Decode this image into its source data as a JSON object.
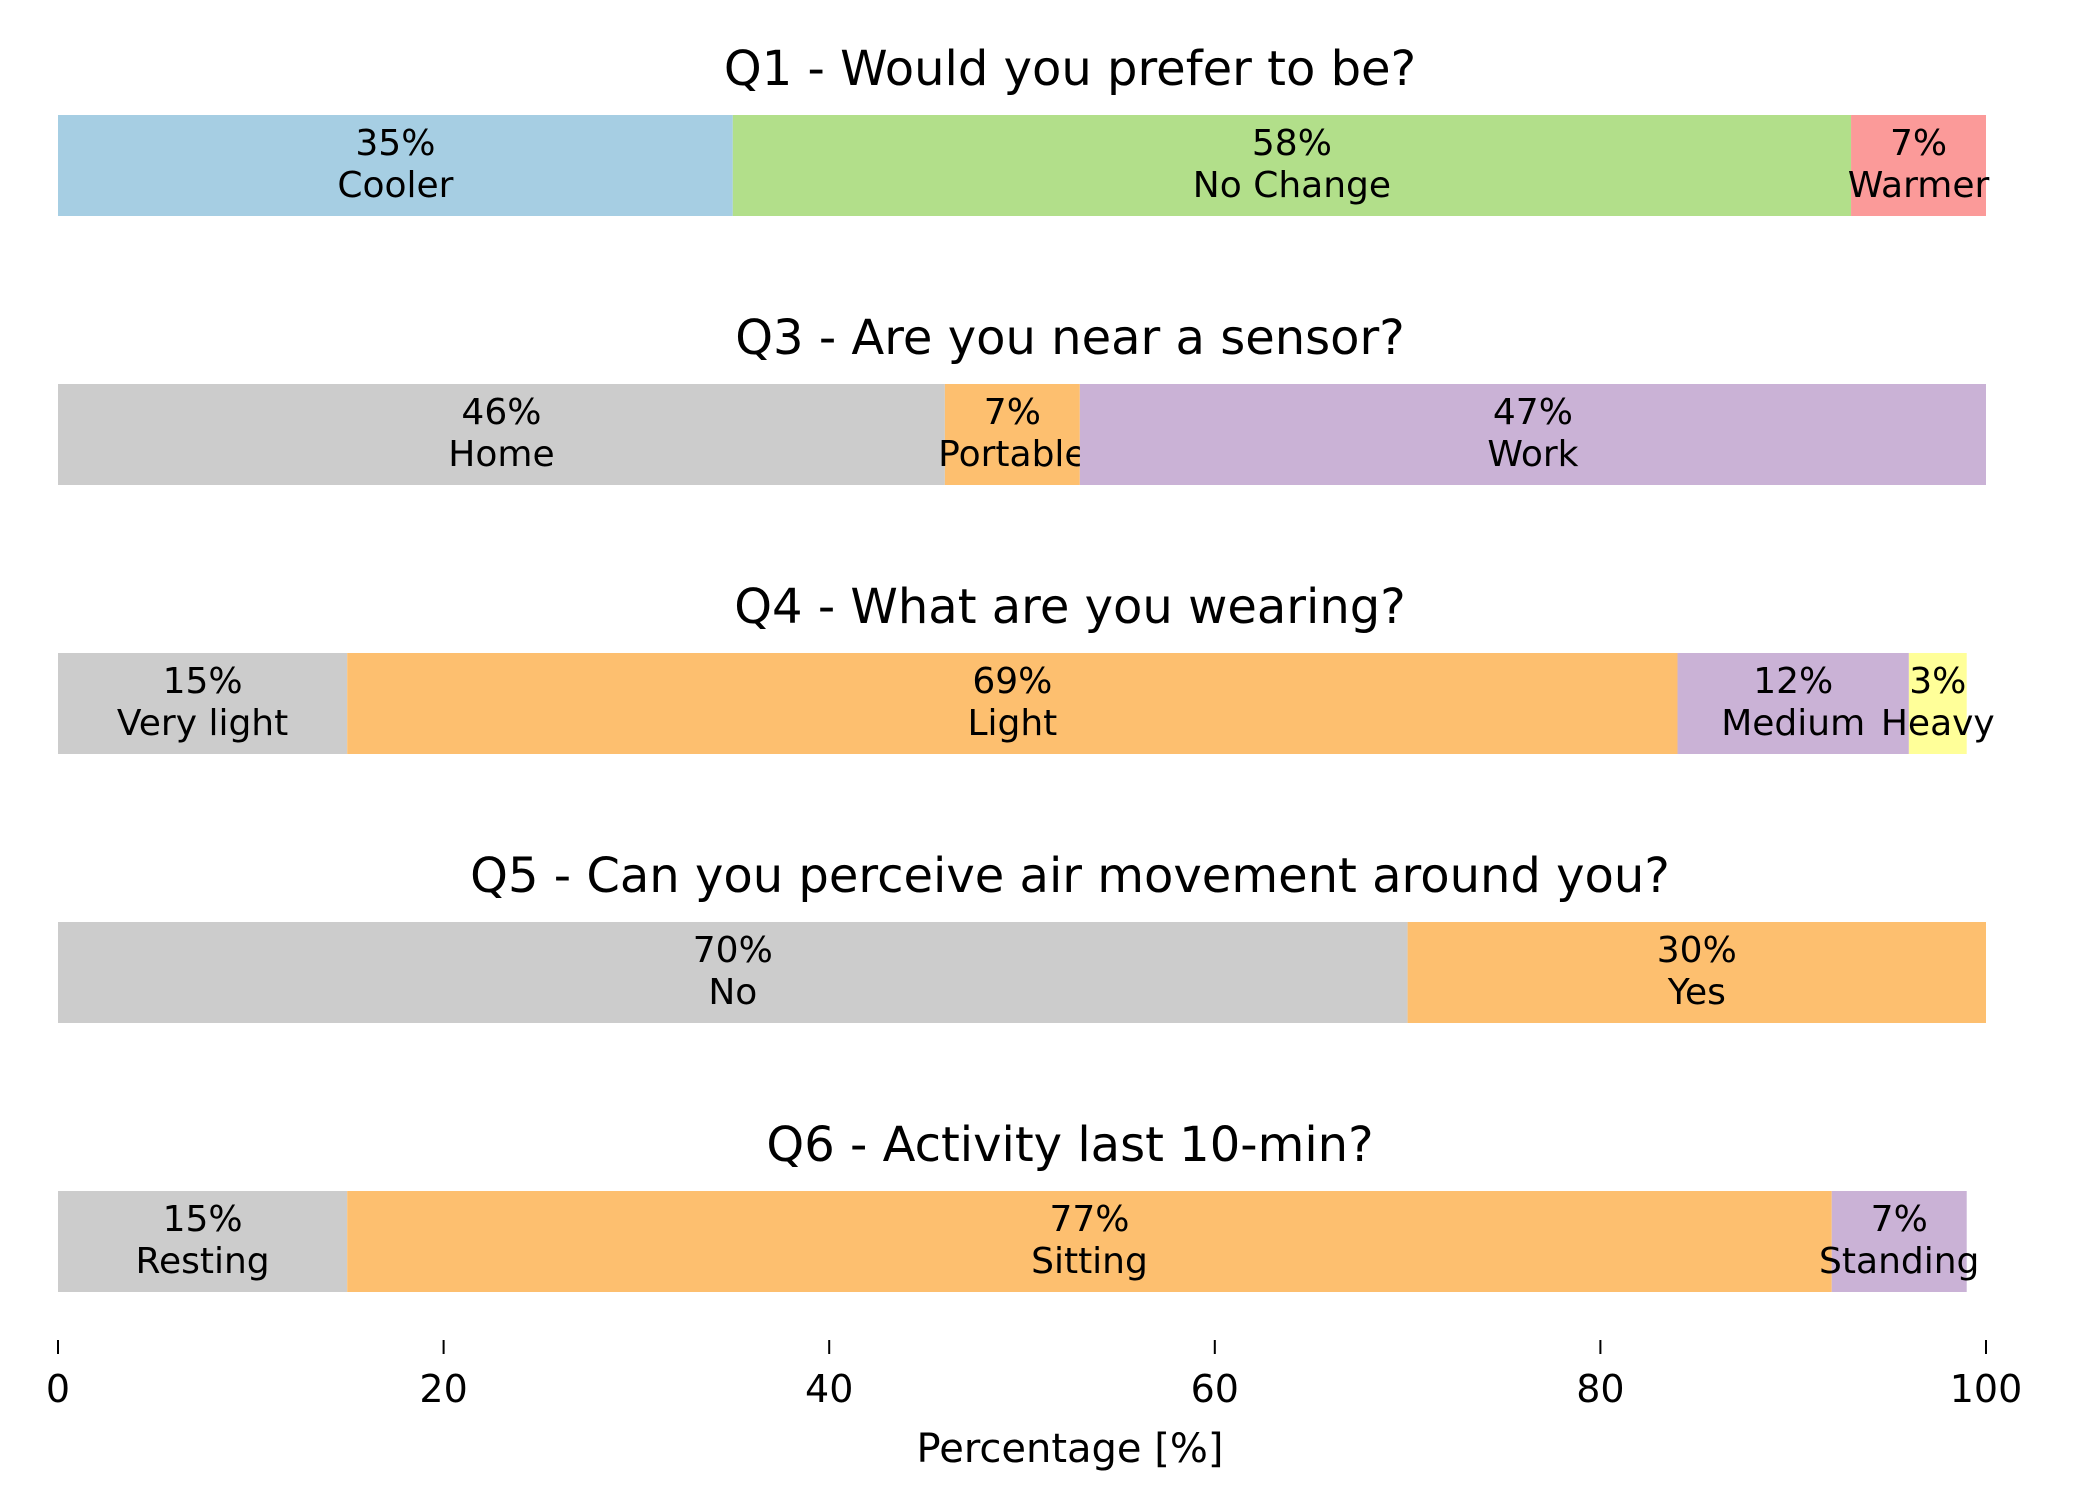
{
  "chart_data": {
    "type": "bar",
    "orientation": "horizontal",
    "stacked": true,
    "xlabel": "Percentage [%]",
    "xlim": [
      0,
      100
    ],
    "xticks": [
      0,
      20,
      40,
      60,
      80,
      100
    ],
    "grid": false,
    "panels": [
      {
        "title": "Q1 - Would you prefer to be?",
        "segments": [
          {
            "label": "Cooler",
            "value": 35,
            "color": "#a6cee3"
          },
          {
            "label": "No Change",
            "value": 58,
            "color": "#b2df8a"
          },
          {
            "label": "Warmer",
            "value": 7,
            "color": "#fb9a99"
          }
        ]
      },
      {
        "title": "Q3 - Are you near a sensor?",
        "segments": [
          {
            "label": "Home",
            "value": 46,
            "color": "#cccccc"
          },
          {
            "label": "Portable",
            "value": 7,
            "color": "#fdbf6f"
          },
          {
            "label": "Work",
            "value": 47,
            "color": "#cab2d6"
          }
        ]
      },
      {
        "title": "Q4 - What are you wearing?",
        "segments": [
          {
            "label": "Very light",
            "value": 15,
            "color": "#cccccc"
          },
          {
            "label": "Light",
            "value": 69,
            "color": "#fdbf6f"
          },
          {
            "label": "Medium",
            "value": 12,
            "color": "#cab2d6"
          },
          {
            "label": "Heavy",
            "value": 3,
            "color": "#ffff99"
          }
        ]
      },
      {
        "title": "Q5 - Can you perceive air movement around you?",
        "segments": [
          {
            "label": "No",
            "value": 70,
            "color": "#cccccc"
          },
          {
            "label": "Yes",
            "value": 30,
            "color": "#fdbf6f"
          }
        ]
      },
      {
        "title": "Q6 - Activity last 10-min?",
        "segments": [
          {
            "label": "Resting",
            "value": 15,
            "color": "#cccccc"
          },
          {
            "label": "Sitting",
            "value": 77,
            "color": "#fdbf6f"
          },
          {
            "label": "Standing",
            "value": 7,
            "color": "#cab2d6"
          }
        ]
      }
    ]
  }
}
